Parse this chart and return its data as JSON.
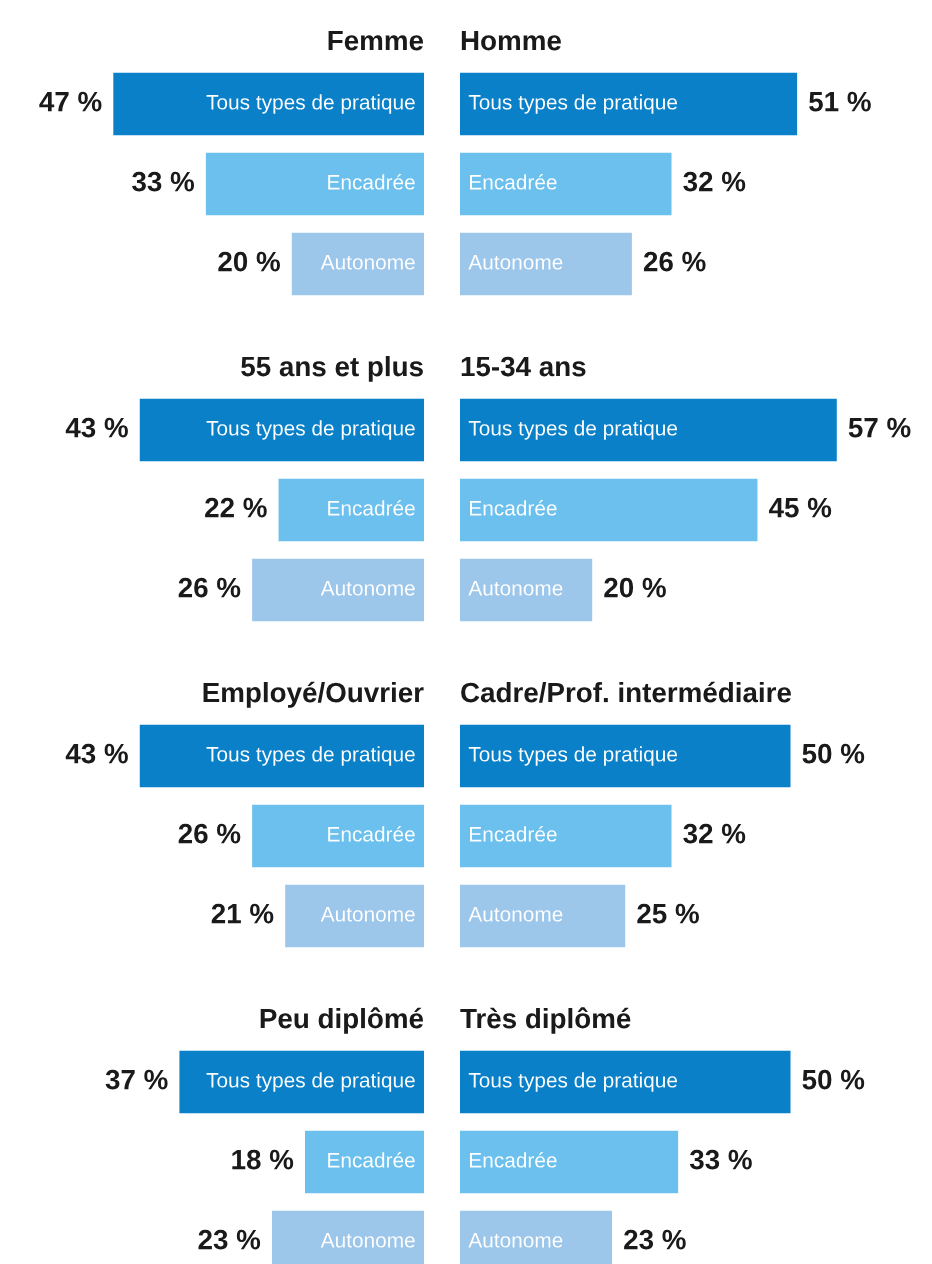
{
  "chart_data": [
    {
      "type": "bar",
      "orientation": "horizontal",
      "title": "Femme",
      "categories": [
        "Tous types de pratique",
        "Encadrée",
        "Autonome"
      ],
      "values": [
        47,
        33,
        20
      ],
      "value_labels": [
        "47 %",
        "33 %",
        "20 %"
      ],
      "colors": [
        "#0a80c8",
        "#6cc0ee",
        "#9cc6ea"
      ],
      "tick_labels": false
    },
    {
      "type": "bar",
      "orientation": "horizontal",
      "title": "Homme",
      "categories": [
        "Tous types de pratique",
        "Encadrée",
        "Autonome"
      ],
      "values": [
        51,
        32,
        26
      ],
      "value_labels": [
        "51 %",
        "32 %",
        "26 %"
      ],
      "colors": [
        "#0a80c8",
        "#6cc0ee",
        "#9cc6ea"
      ],
      "tick_labels": false
    },
    {
      "type": "bar",
      "orientation": "horizontal",
      "title": "55 ans et plus",
      "categories": [
        "Tous types de pratique",
        "Encadrée",
        "Autonome"
      ],
      "values": [
        43,
        22,
        26
      ],
      "value_labels": [
        "43 %",
        "22 %",
        "26 %"
      ],
      "colors": [
        "#0a80c8",
        "#6cc0ee",
        "#9cc6ea"
      ],
      "tick_labels": false
    },
    {
      "type": "bar",
      "orientation": "horizontal",
      "title": "15-34 ans",
      "categories": [
        "Tous types de pratique",
        "Encadrée",
        "Autonome"
      ],
      "values": [
        57,
        45,
        20
      ],
      "value_labels": [
        "57 %",
        "45 %",
        "20 %"
      ],
      "colors": [
        "#0a80c8",
        "#6cc0ee",
        "#9cc6ea"
      ],
      "tick_labels": false
    },
    {
      "type": "bar",
      "orientation": "horizontal",
      "title": "Employé/Ouvrier",
      "categories": [
        "Tous types de pratique",
        "Encadrée",
        "Autonome"
      ],
      "values": [
        43,
        26,
        21
      ],
      "value_labels": [
        "43 %",
        "26 %",
        "21 %"
      ],
      "colors": [
        "#0a80c8",
        "#6cc0ee",
        "#9cc6ea"
      ],
      "tick_labels": false
    },
    {
      "type": "bar",
      "orientation": "horizontal",
      "title": "Cadre/Prof. intermédiaire",
      "categories": [
        "Tous types de pratique",
        "Encadrée",
        "Autonome"
      ],
      "values": [
        50,
        32,
        25
      ],
      "value_labels": [
        "50 %",
        "32 %",
        "25 %"
      ],
      "colors": [
        "#0a80c8",
        "#6cc0ee",
        "#9cc6ea"
      ],
      "tick_labels": false
    },
    {
      "type": "bar",
      "orientation": "horizontal",
      "title": "Peu diplômé",
      "categories": [
        "Tous types de pratique",
        "Encadrée",
        "Autonome"
      ],
      "values": [
        37,
        18,
        23
      ],
      "value_labels": [
        "37 %",
        "18 %",
        "23 %"
      ],
      "colors": [
        "#0a80c8",
        "#6cc0ee",
        "#9cc6ea"
      ],
      "tick_labels": false
    },
    {
      "type": "bar",
      "orientation": "horizontal",
      "title": "Très diplômé",
      "categories": [
        "Tous types de pratique",
        "Encadrée",
        "Autonome"
      ],
      "values": [
        50,
        33,
        23
      ],
      "value_labels": [
        "50 %",
        "33 %",
        "23 %"
      ],
      "colors": [
        "#0a80c8",
        "#6cc0ee",
        "#9cc6ea"
      ],
      "tick_labels": false
    }
  ]
}
